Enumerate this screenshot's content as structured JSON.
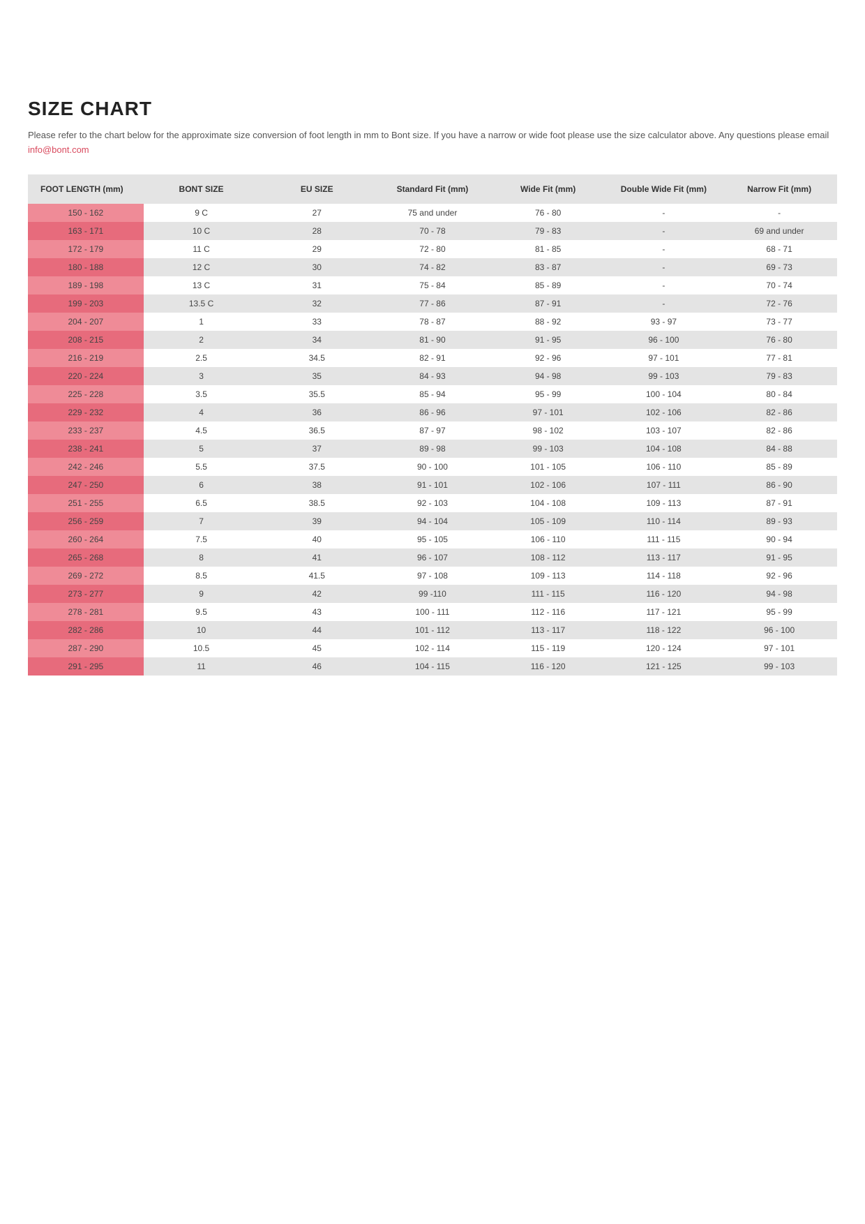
{
  "title": "SIZE CHART",
  "intro_before": "Please refer to the chart below for the approximate size conversion of foot length in mm to Bont size. If you have a narrow or wide foot please use the size calculator above. Any questions please email ",
  "intro_link": "info@bont.com",
  "table": {
    "columns": [
      "FOOT LENGTH (mm)",
      "BONT SIZE",
      "EU SIZE",
      "Standard Fit (mm)",
      "Wide Fit (mm)",
      "Double Wide Fit (mm)",
      "Narrow Fit (mm)"
    ],
    "rows": [
      [
        "150 - 162",
        "9 C",
        "27",
        "75 and under",
        "76 - 80",
        "-",
        "-"
      ],
      [
        "163 - 171",
        "10 C",
        "28",
        "70 - 78",
        "79 - 83",
        "-",
        "69 and under"
      ],
      [
        "172 - 179",
        "11 C",
        "29",
        "72 - 80",
        "81 - 85",
        "-",
        "68 - 71"
      ],
      [
        "180 - 188",
        "12 C",
        "30",
        "74 - 82",
        "83 - 87",
        "-",
        "69 - 73"
      ],
      [
        "189 - 198",
        "13 C",
        "31",
        "75 - 84",
        "85 - 89",
        "-",
        "70 - 74"
      ],
      [
        "199 - 203",
        "13.5 C",
        "32",
        "77 - 86",
        "87 - 91",
        "-",
        "72 - 76"
      ],
      [
        "204 - 207",
        "1",
        "33",
        "78 - 87",
        "88 - 92",
        "93 - 97",
        "73 - 77"
      ],
      [
        "208 - 215",
        "2",
        "34",
        "81 - 90",
        "91 - 95",
        "96 - 100",
        "76 - 80"
      ],
      [
        "216 - 219",
        "2.5",
        "34.5",
        "82 - 91",
        "92 - 96",
        "97 - 101",
        "77 - 81"
      ],
      [
        "220 - 224",
        "3",
        "35",
        "84 - 93",
        "94 - 98",
        "99 - 103",
        "79 - 83"
      ],
      [
        "225 - 228",
        "3.5",
        "35.5",
        "85 - 94",
        "95 - 99",
        "100 - 104",
        "80 - 84"
      ],
      [
        "229 - 232",
        "4",
        "36",
        "86 - 96",
        "97 - 101",
        "102 - 106",
        "82 - 86"
      ],
      [
        "233 - 237",
        "4.5",
        "36.5",
        "87 - 97",
        "98 - 102",
        "103 - 107",
        "82 - 86"
      ],
      [
        "238 - 241",
        "5",
        "37",
        "89 - 98",
        "99 - 103",
        "104 - 108",
        "84 - 88"
      ],
      [
        "242 - 246",
        "5.5",
        "37.5",
        "90 - 100",
        "101 - 105",
        "106 - 110",
        "85 - 89"
      ],
      [
        "247 - 250",
        "6",
        "38",
        "91 - 101",
        "102 - 106",
        "107 - 111",
        "86 - 90"
      ],
      [
        "251 - 255",
        "6.5",
        "38.5",
        "92 - 103",
        "104 - 108",
        "109 - 113",
        "87 - 91"
      ],
      [
        "256 - 259",
        "7",
        "39",
        "94 - 104",
        "105 - 109",
        "110 - 114",
        "89 - 93"
      ],
      [
        "260 - 264",
        "7.5",
        "40",
        "95 - 105",
        "106 - 110",
        "111 - 115",
        "90 - 94"
      ],
      [
        "265 - 268",
        "8",
        "41",
        "96 - 107",
        "108 - 112",
        "113 - 117",
        "91 - 95"
      ],
      [
        "269 - 272",
        "8.5",
        "41.5",
        "97 - 108",
        "109 - 113",
        "114 - 118",
        "92 - 96"
      ],
      [
        "273 - 277",
        "9",
        "42",
        "99 -110",
        "111 - 115",
        "116 - 120",
        "94 - 98"
      ],
      [
        "278 - 281",
        "9.5",
        "43",
        "100 - 111",
        "112 - 116",
        "117 - 121",
        "95 - 99"
      ],
      [
        "282 - 286",
        "10",
        "44",
        "101 - 112",
        "113 - 117",
        "118 - 122",
        "96 - 100"
      ],
      [
        "287 - 290",
        "10.5",
        "45",
        "102 - 114",
        "115 - 119",
        "120 - 124",
        "97 - 101"
      ],
      [
        "291 - 295",
        "11",
        "46",
        "104 - 115",
        "116 - 120",
        "121 - 125",
        "99 - 103"
      ]
    ],
    "colors": {
      "header_bg": "#e4e4e4",
      "row_odd_bg": "#ffffff",
      "row_even_bg": "#e4e4e4",
      "firstcol_odd_bg": "#ef8b97",
      "firstcol_even_bg": "#e76b7c",
      "link_color": "#d94a5e"
    }
  }
}
